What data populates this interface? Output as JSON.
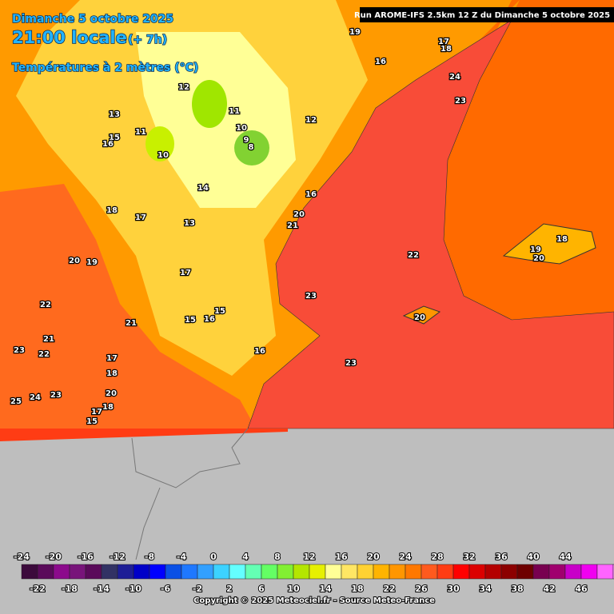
{
  "header": {
    "date": "Dimanche 5 octobre 2025",
    "time": "21:00 locale",
    "lead": "(+ 7h)",
    "parameter": "Températures à 2 mètres (°C)",
    "run": "Run AROME-IFS 2.5km 12 Z du Dimanche 5 octobre 2025"
  },
  "map_labels": [
    19,
    16,
    17,
    18,
    24,
    23,
    12,
    13,
    11,
    11,
    12,
    10,
    9,
    8,
    15,
    16,
    10,
    14,
    16,
    20,
    21,
    18,
    17,
    13,
    18,
    19,
    20,
    22,
    20,
    19,
    17,
    23,
    22,
    15,
    15,
    16,
    21,
    20,
    21,
    23,
    22,
    16,
    17,
    18,
    23,
    20,
    24,
    23,
    25,
    18,
    17,
    15
  ],
  "colorbar": {
    "ticks": [
      -24,
      -22,
      -20,
      -18,
      -16,
      -14,
      -12,
      -10,
      -8,
      -6,
      -4,
      -2,
      0,
      2,
      4,
      6,
      8,
      10,
      12,
      14,
      16,
      18,
      20,
      22,
      24,
      26,
      28,
      30,
      32,
      34,
      36,
      38,
      40,
      42,
      44,
      46
    ],
    "colors": [
      "#3c0a3c",
      "#5a0a5a",
      "#8c0a8c",
      "#78147a",
      "#5a0a5a",
      "#323264",
      "#1e1e96",
      "#0000c8",
      "#0000ff",
      "#0a50e6",
      "#1e78ff",
      "#32a0ff",
      "#3cd2ff",
      "#64ffff",
      "#64ffb4",
      "#64ff64",
      "#82f032",
      "#b4e600",
      "#e6f000",
      "#ffff96",
      "#ffe664",
      "#ffd232",
      "#ffb400",
      "#ff9600",
      "#ff7800",
      "#ff5a1e",
      "#ff3c14",
      "#ff0000",
      "#dc0000",
      "#b40000",
      "#8c0000",
      "#6e0000",
      "#780050",
      "#a0006e",
      "#c800c8",
      "#f000f0",
      "#ff64ff",
      "#ff96ff"
    ]
  },
  "copyright": "Copyright © 2025 Meteociel.fr - Source Meteo-France"
}
